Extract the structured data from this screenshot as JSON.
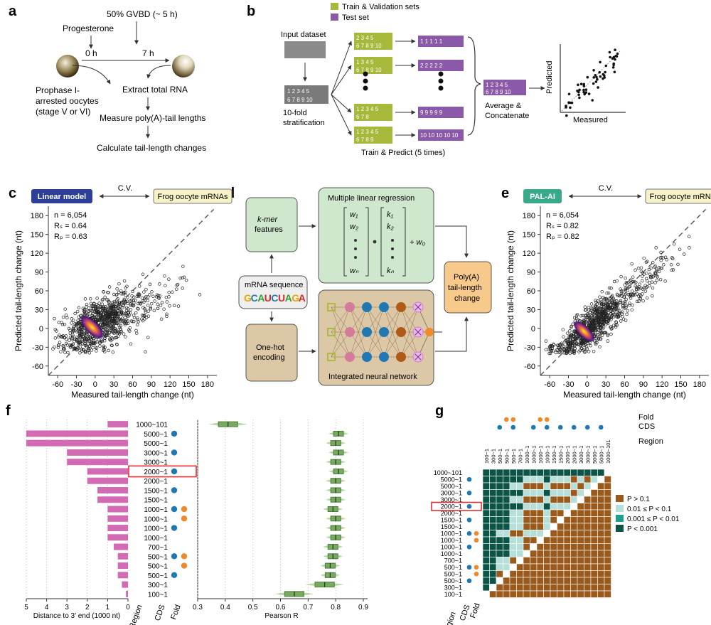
{
  "panels": {
    "a": "a",
    "b": "b",
    "c": "c",
    "d": "d",
    "e": "e",
    "f": "f",
    "g": "g"
  },
  "a": {
    "gvbd": "50% GVBD (~ 5 h)",
    "progesterone": "Progesterone",
    "t0": "0 h",
    "t7": "7 h",
    "oocyte_label": [
      "Prophase I-",
      "arrested oocytes",
      "(stage V or VI)"
    ],
    "steps": [
      "Extract total RNA",
      "Measure poly(A)-tail lengths",
      "Calculate tail-length changes"
    ]
  },
  "b": {
    "legend_train": "Train & Validation sets",
    "legend_test": "Test set",
    "input": "Input dataset",
    "strat": [
      "10-fold",
      "stratification"
    ],
    "strat_top": "1 2 3 4 5",
    "strat_bot": "6 7 8 9 10",
    "folds": [
      {
        "top": "2 3 4 5",
        "bot": "6 7 8 9 10",
        "test": "1 1 1 1 1"
      },
      {
        "top": "1 3 4 5",
        "bot": "6 7 8 9 10",
        "test": "2 2 2 2 2"
      },
      {
        "top": "1 2 3 4 5",
        "bot": "6 7 8",
        "test": "9 9 9 9 9"
      },
      {
        "top": "1 2 3 4 5",
        "bot": "6 7 8 9",
        "test": "10 10 10 10 10"
      }
    ],
    "train_predict": "Train & Predict (5 times)",
    "avg": [
      "Average &",
      "Concatenate"
    ],
    "predicted": "Predicted",
    "measured": "Measured"
  },
  "c": {
    "model": "Linear model",
    "cv": "C.V.",
    "data": "Frog oocyte mRNAs",
    "stats": [
      "n = 6,054",
      "Rₛ = 0.64",
      "Rₚ = 0.63"
    ],
    "xlabel": "Measured tail-length change (nt)",
    "ylabel": "Predicted tail-length change (nt)",
    "xticks": [
      "-60",
      "-30",
      "0",
      "30",
      "60",
      "90",
      "120",
      "150",
      "180"
    ],
    "yticks": [
      "180",
      "150",
      "120",
      "90",
      "60",
      "30",
      "0",
      "-30",
      "-60"
    ]
  },
  "d": {
    "kmer": [
      "k-mer",
      "features"
    ],
    "mrna": "mRNA sequence",
    "seq": [
      "G",
      "C",
      "A",
      "U",
      "C",
      "U",
      "A",
      "G",
      "A"
    ],
    "seq_colors": [
      "#e8a400",
      "#1f77b4",
      "#2ca02c",
      "#d62728",
      "#1f77b4",
      "#d62728",
      "#2ca02c",
      "#e8a400",
      "#d62728"
    ],
    "onehot": [
      "One-hot",
      "encoding"
    ],
    "mlr": "Multiple linear regression",
    "nn": "Integrated neural network",
    "out": [
      "Poly(A)",
      "tail-length",
      "change"
    ]
  },
  "e": {
    "model": "PAL-AI",
    "cv": "C.V.",
    "data": "Frog oocyte mRNAs",
    "stats": [
      "n = 6,054",
      "Rₛ = 0.82",
      "Rₚ = 0.82"
    ],
    "xlabel": "Measured tail-length change (nt)",
    "ylabel": "Predicted tail-length change (nt)",
    "xticks": [
      "-60",
      "-30",
      "0",
      "30",
      "60",
      "90",
      "120",
      "150",
      "180"
    ],
    "yticks": [
      "180",
      "150",
      "120",
      "90",
      "60",
      "30",
      "0",
      "-30",
      "-60"
    ]
  },
  "f": {
    "regions": [
      "1000~101",
      "5000~1",
      "5000~1",
      "3000~1",
      "3000~1",
      "2000~1",
      "2000~1",
      "1500~1",
      "1500~1",
      "1000~1",
      "1000~1",
      "1000~1",
      "1000~1",
      "700~1",
      "500~1",
      "500~1",
      "500~1",
      "300~1",
      "100~1"
    ],
    "cds": [
      0,
      1,
      0,
      1,
      0,
      1,
      0,
      1,
      0,
      1,
      0,
      1,
      0,
      0,
      1,
      0,
      1,
      0,
      0
    ],
    "fold": [
      0,
      0,
      0,
      0,
      0,
      0,
      0,
      0,
      0,
      1,
      1,
      0,
      0,
      0,
      1,
      1,
      0,
      0,
      0
    ],
    "bars": [
      1.0,
      5.0,
      5.0,
      3.0,
      3.0,
      2.0,
      2.0,
      1.5,
      1.5,
      1.0,
      1.0,
      1.0,
      1.0,
      0.7,
      0.5,
      0.5,
      0.5,
      0.3,
      0.1
    ],
    "pearson": [
      0.41,
      0.81,
      0.8,
      0.81,
      0.8,
      0.81,
      0.8,
      0.8,
      0.8,
      0.79,
      0.8,
      0.8,
      0.8,
      0.79,
      0.79,
      0.78,
      0.78,
      0.76,
      0.65
    ],
    "dist_label": "Distance to 3′ end (1000 nt)",
    "dist_ticks": [
      "5",
      "4",
      "3",
      "2",
      "1",
      "0"
    ],
    "pear_label": "Pearson R",
    "pear_ticks": [
      "0.3",
      "0.4",
      "0.5",
      "0.6",
      "0.7",
      "0.8",
      "0.9"
    ],
    "col_labels": [
      "Region",
      "CDS",
      "Fold"
    ]
  },
  "g": {
    "fold_label": "Fold",
    "cds_label": "CDS",
    "region_label": "Region",
    "legend": [
      "P > 0.1",
      "0.01 ≤ P < 0.1",
      "0.001 ≤ P < 0.01",
      "P < 0.001"
    ],
    "legend_colors": [
      "#9a5a1c",
      "#b5dfd8",
      "#1e9e8c",
      "#0c5446"
    ],
    "col_labels": [
      "Region",
      "CDS",
      "Fold"
    ]
  },
  "colors": {
    "train": "#a8b83a",
    "test": "#8a5aa8",
    "blue": "#1f77b4",
    "orange": "#ee8a2a",
    "pink": "#d36ab4",
    "green_box": "#4a7f3c"
  }
}
